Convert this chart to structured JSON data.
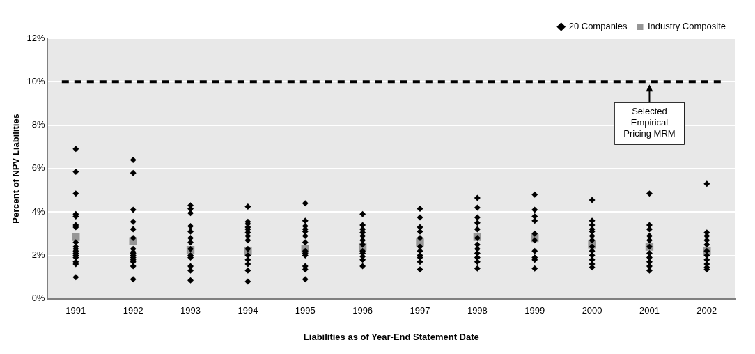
{
  "chart_data": {
    "type": "scatter",
    "xlabel": "Liabilities as of Year-End Statement Date",
    "ylabel": "Percent of NPV Liabilities",
    "xlim": [
      1990.5,
      2002.5
    ],
    "xticks": [
      1991,
      1992,
      1993,
      1994,
      1995,
      1996,
      1997,
      1998,
      1999,
      2000,
      2001,
      2002
    ],
    "ylim": [
      0,
      12
    ],
    "yticks": [
      {
        "value": 0,
        "label": "0%"
      },
      {
        "value": 2,
        "label": "2%"
      },
      {
        "value": 4,
        "label": "4%"
      },
      {
        "value": 6,
        "label": "6%"
      },
      {
        "value": 8,
        "label": "8%"
      },
      {
        "value": 10,
        "label": "10%"
      },
      {
        "value": 12,
        "label": "12%"
      }
    ],
    "grid": "y",
    "legend": "top right",
    "series": [
      {
        "name": "20 Companies",
        "color": "#000000",
        "marker": "diamond",
        "x": [
          1991,
          1991,
          1991,
          1991,
          1991,
          1991,
          1991,
          1991,
          1991,
          1991,
          1991,
          1991,
          1991,
          1991,
          1991,
          1991,
          1991,
          1992,
          1992,
          1992,
          1992,
          1992,
          1992,
          1992,
          1992,
          1992,
          1992,
          1992,
          1992,
          1992,
          1992,
          1992,
          1993,
          1993,
          1993,
          1993,
          1993,
          1993,
          1993,
          1993,
          1993,
          1993,
          1993,
          1993,
          1993,
          1994,
          1994,
          1994,
          1994,
          1994,
          1994,
          1994,
          1994,
          1994,
          1994,
          1994,
          1994,
          1994,
          1994,
          1995,
          1995,
          1995,
          1995,
          1995,
          1995,
          1995,
          1995,
          1995,
          1995,
          1995,
          1995,
          1995,
          1996,
          1996,
          1996,
          1996,
          1996,
          1996,
          1996,
          1996,
          1996,
          1996,
          1996,
          1996,
          1997,
          1997,
          1997,
          1997,
          1997,
          1997,
          1997,
          1997,
          1997,
          1997,
          1997,
          1998,
          1998,
          1998,
          1998,
          1998,
          1998,
          1998,
          1998,
          1998,
          1998,
          1998,
          1998,
          1999,
          1999,
          1999,
          1999,
          1999,
          1999,
          1999,
          1999,
          1999,
          1999,
          2000,
          2000,
          2000,
          2000,
          2000,
          2000,
          2000,
          2000,
          2000,
          2000,
          2000,
          2000,
          2000,
          2001,
          2001,
          2001,
          2001,
          2001,
          2001,
          2001,
          2001,
          2001,
          2001,
          2001,
          2002,
          2002,
          2002,
          2002,
          2002,
          2002,
          2002,
          2002,
          2002,
          2002,
          2002
        ],
        "values": [
          6.9,
          5.85,
          4.85,
          3.9,
          3.8,
          3.4,
          3.3,
          2.6,
          2.4,
          2.3,
          2.2,
          2.1,
          2.0,
          1.9,
          1.7,
          1.6,
          1.0,
          6.4,
          5.8,
          4.1,
          3.55,
          3.2,
          2.8,
          2.3,
          2.15,
          2.1,
          2.0,
          1.9,
          1.8,
          1.7,
          1.5,
          0.9,
          4.3,
          4.15,
          3.95,
          3.35,
          3.1,
          2.8,
          2.6,
          2.3,
          2.0,
          1.9,
          1.5,
          1.3,
          0.85,
          4.25,
          3.55,
          3.45,
          3.3,
          3.2,
          3.05,
          2.9,
          2.7,
          2.3,
          2.0,
          1.8,
          1.6,
          1.3,
          0.8,
          4.4,
          3.6,
          3.35,
          3.2,
          3.1,
          2.9,
          2.6,
          2.2,
          2.1,
          2.0,
          1.5,
          1.35,
          0.9,
          3.9,
          3.4,
          3.2,
          3.05,
          2.9,
          2.7,
          2.5,
          2.2,
          2.1,
          1.95,
          1.8,
          1.5,
          4.15,
          3.75,
          3.3,
          3.1,
          2.8,
          2.4,
          2.2,
          2.0,
          1.9,
          1.7,
          1.35,
          4.65,
          4.2,
          3.75,
          3.5,
          3.2,
          2.8,
          2.5,
          2.3,
          2.1,
          1.9,
          1.7,
          1.4,
          4.8,
          4.1,
          3.8,
          3.6,
          3.0,
          2.7,
          2.2,
          1.9,
          1.8,
          1.4,
          4.55,
          3.6,
          3.4,
          3.2,
          3.1,
          2.9,
          2.7,
          2.4,
          2.2,
          2.0,
          1.8,
          1.6,
          1.45,
          4.85,
          3.4,
          3.2,
          2.9,
          2.7,
          2.4,
          2.1,
          1.9,
          1.7,
          1.5,
          1.3,
          5.3,
          3.05,
          2.9,
          2.7,
          2.5,
          2.2,
          2.0,
          1.8,
          1.6,
          1.45,
          1.35
        ]
      },
      {
        "name": "Industry Composite",
        "color": "#969696",
        "marker": "square",
        "x": [
          1991,
          1992,
          1993,
          1994,
          1995,
          1996,
          1997,
          1998,
          1999,
          2000,
          2001,
          2002
        ],
        "values": [
          2.85,
          2.65,
          2.25,
          2.2,
          2.3,
          2.4,
          2.6,
          2.85,
          2.8,
          2.5,
          2.4,
          2.2
        ]
      }
    ],
    "ref_lines": [
      {
        "axis": "y",
        "value": 10,
        "color": "#000000",
        "line_style": "dashed"
      }
    ],
    "annotations": [
      {
        "text": "Selected Empirical Pricing MRM",
        "x": 2001,
        "y": 10
      }
    ]
  }
}
